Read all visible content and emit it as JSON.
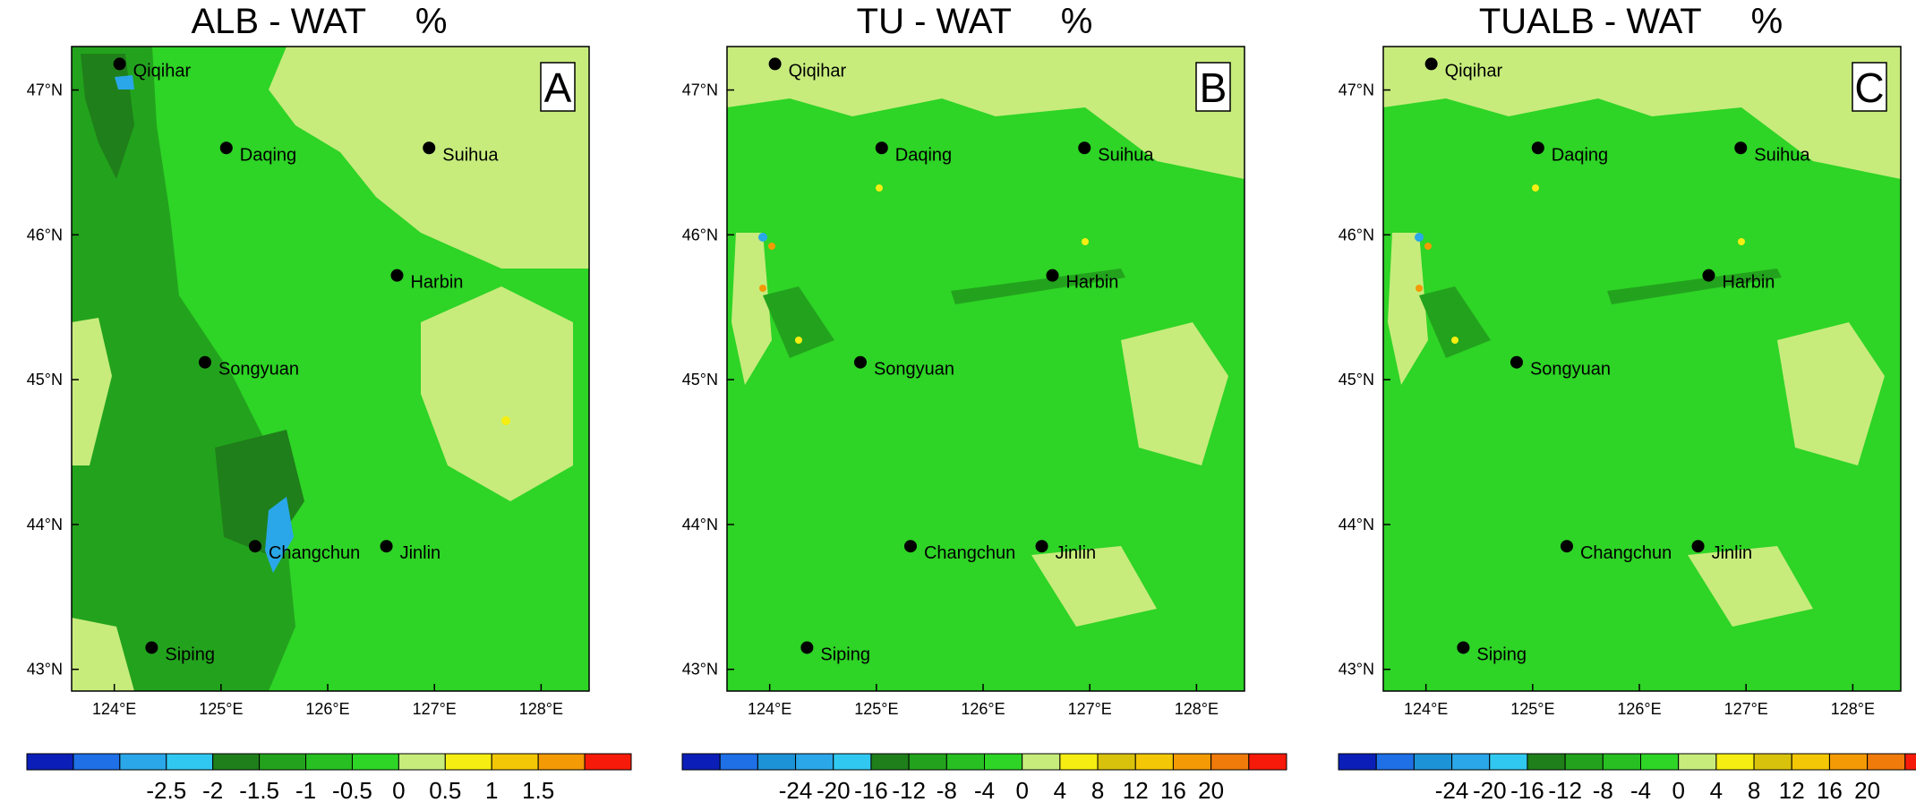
{
  "panels": [
    {
      "title": "ALB - WAT     %",
      "letter": "A",
      "colorbar": {
        "colors": [
          "#0b1fb8",
          "#1f6fe6",
          "#2aa7e8",
          "#30c8f0",
          "#1f7f1a",
          "#23a31d",
          "#27bf22",
          "#2ed426",
          "#c7ec7c",
          "#f6ee12",
          "#f3c705",
          "#f39a05",
          "#f51a0a"
        ],
        "labels": [
          "-2.5",
          "-2",
          "-1.5",
          "-1",
          "-0.5",
          "0",
          "0.5",
          "1",
          "1.5"
        ]
      },
      "background": "#2ed426"
    },
    {
      "title": "TU - WAT     %",
      "letter": "B",
      "colorbar": {
        "colors": [
          "#0b1fb8",
          "#1f6fe6",
          "#1c93d6",
          "#2aa7e8",
          "#30c8f0",
          "#1f7f1a",
          "#23a31d",
          "#27bf22",
          "#2ed426",
          "#c7ec7c",
          "#f6ee12",
          "#d9c20c",
          "#f3c705",
          "#f39a05",
          "#f07b0a",
          "#f51a0a"
        ],
        "labels": [
          "-24",
          "-20",
          "-16",
          "-12",
          "-8",
          "-4",
          "0",
          "4",
          "8",
          "12",
          "16",
          "20"
        ]
      },
      "background": "#2ed426"
    },
    {
      "title": "TUALB - WAT     %",
      "letter": "C",
      "colorbar": {
        "colors": [
          "#0b1fb8",
          "#1f6fe6",
          "#1c93d6",
          "#2aa7e8",
          "#30c8f0",
          "#1f7f1a",
          "#23a31d",
          "#27bf22",
          "#2ed426",
          "#c7ec7c",
          "#f6ee12",
          "#d9c20c",
          "#f3c705",
          "#f39a05",
          "#f07b0a",
          "#f51a0a"
        ],
        "labels": [
          "-24",
          "-20",
          "-16",
          "-12",
          "-8",
          "-4",
          "0",
          "4",
          "8",
          "12",
          "16",
          "20"
        ]
      },
      "background": "#2ed426"
    }
  ],
  "axes": {
    "lat_labels": [
      "47°N",
      "46°N",
      "45°N",
      "44°N",
      "43°N"
    ],
    "lon_labels": [
      "124°E",
      "125°E",
      "126°E",
      "127°E",
      "128°E"
    ],
    "lat_values": [
      47,
      46,
      45,
      44,
      43
    ],
    "lon_values": [
      124,
      125,
      126,
      127,
      128
    ],
    "lat_range": [
      42.85,
      47.3
    ],
    "lon_range": [
      123.6,
      128.45
    ]
  },
  "cities": [
    {
      "name": "Qiqihar",
      "lon": 124.05,
      "lat": 47.18
    },
    {
      "name": "Daqing",
      "lon": 125.05,
      "lat": 46.6
    },
    {
      "name": "Suihua",
      "lon": 126.95,
      "lat": 46.6
    },
    {
      "name": "Harbin",
      "lon": 126.65,
      "lat": 45.72
    },
    {
      "name": "Songyuan",
      "lon": 124.85,
      "lat": 45.12
    },
    {
      "name": "Changchun",
      "lon": 125.32,
      "lat": 43.85
    },
    {
      "name": "Jinlin",
      "lon": 126.55,
      "lat": 43.85
    },
    {
      "name": "Siping",
      "lon": 124.35,
      "lat": 43.15
    }
  ]
}
